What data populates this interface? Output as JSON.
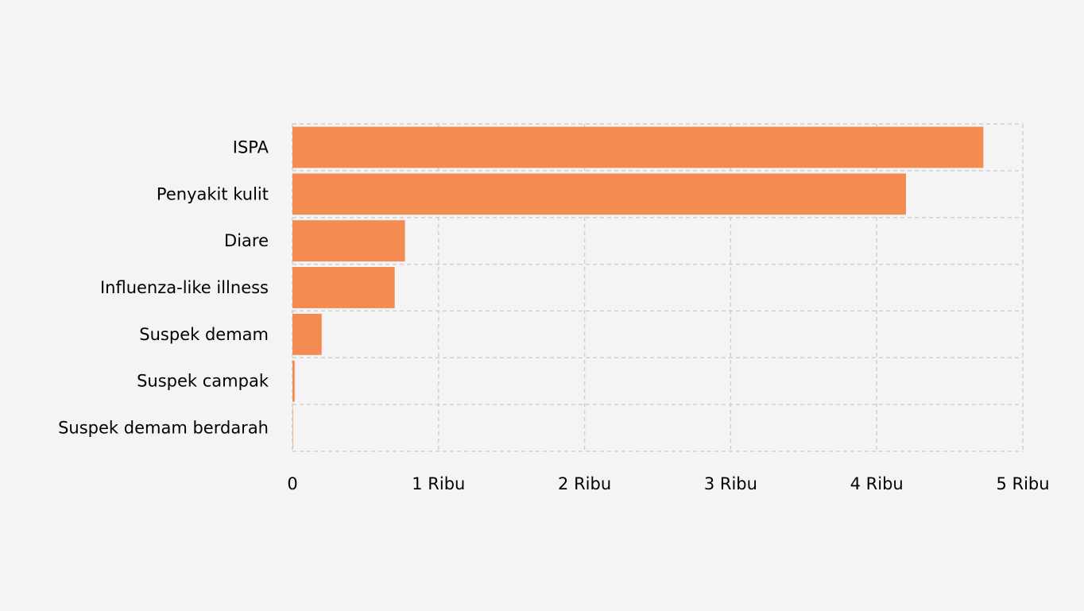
{
  "chart_data": {
    "type": "bar",
    "orientation": "horizontal",
    "categories": [
      "ISPA",
      "Penyakit kulit",
      "Diare",
      "Influenza-like illness",
      "Suspek demam",
      "Suspek campak",
      "Suspek demam berdarah"
    ],
    "values": [
      4730,
      4200,
      770,
      700,
      200,
      15,
      3
    ],
    "xlim": [
      0,
      5000
    ],
    "x_ticks": [
      0,
      1000,
      2000,
      3000,
      4000,
      5000
    ],
    "x_tick_labels": [
      "0",
      "1 Ribu",
      "2 Ribu",
      "3 Ribu",
      "4 Ribu",
      "5 Ribu"
    ],
    "title": "",
    "xlabel": "",
    "ylabel": "",
    "grid": true,
    "legend": "none",
    "bar_color": "#f48b50",
    "grid_color": "#cfcfcf",
    "background_color": "#f4f4f4"
  }
}
